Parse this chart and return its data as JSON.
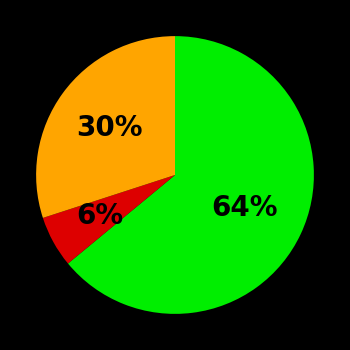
{
  "slices": [
    64,
    6,
    30
  ],
  "colors": [
    "#00ee00",
    "#dd0000",
    "#ffa500"
  ],
  "labels": [
    "64%",
    "6%",
    "30%"
  ],
  "label_r": [
    0.55,
    0.62,
    0.58
  ],
  "startangle": 90,
  "background_color": "#000000",
  "text_color": "#000000",
  "font_size": 20,
  "font_weight": "bold"
}
